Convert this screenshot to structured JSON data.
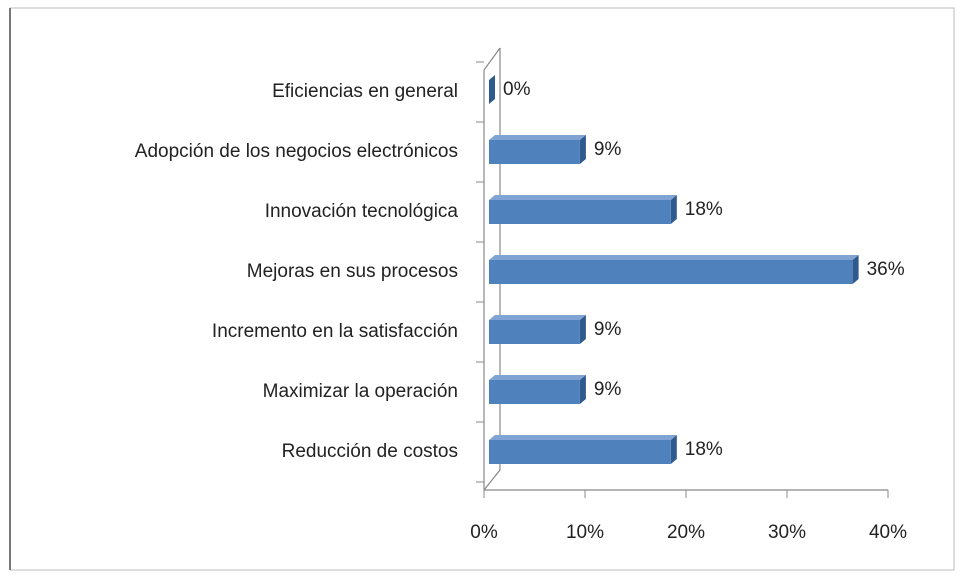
{
  "chart_data": {
    "type": "bar",
    "orientation": "horizontal",
    "categories": [
      "Eficiencias en general",
      "Adopción de los negocios electrónicos",
      "Innovación tecnológica",
      "Mejoras en sus procesos",
      "Incremento en la satisfacción",
      "Maximizar la operación",
      "Reducción de costos"
    ],
    "values": [
      0,
      9,
      18,
      36,
      9,
      9,
      18
    ],
    "value_labels": [
      "0%",
      "9%",
      "18%",
      "36%",
      "9%",
      "9%",
      "18%"
    ],
    "color": "#4f81bd",
    "xlim": [
      0,
      40
    ],
    "xticks": [
      {
        "value": 0,
        "label": "0%"
      },
      {
        "value": 10,
        "label": "10%"
      },
      {
        "value": 20,
        "label": "20%"
      },
      {
        "value": 30,
        "label": "30%"
      },
      {
        "value": 40,
        "label": "40%"
      }
    ]
  }
}
